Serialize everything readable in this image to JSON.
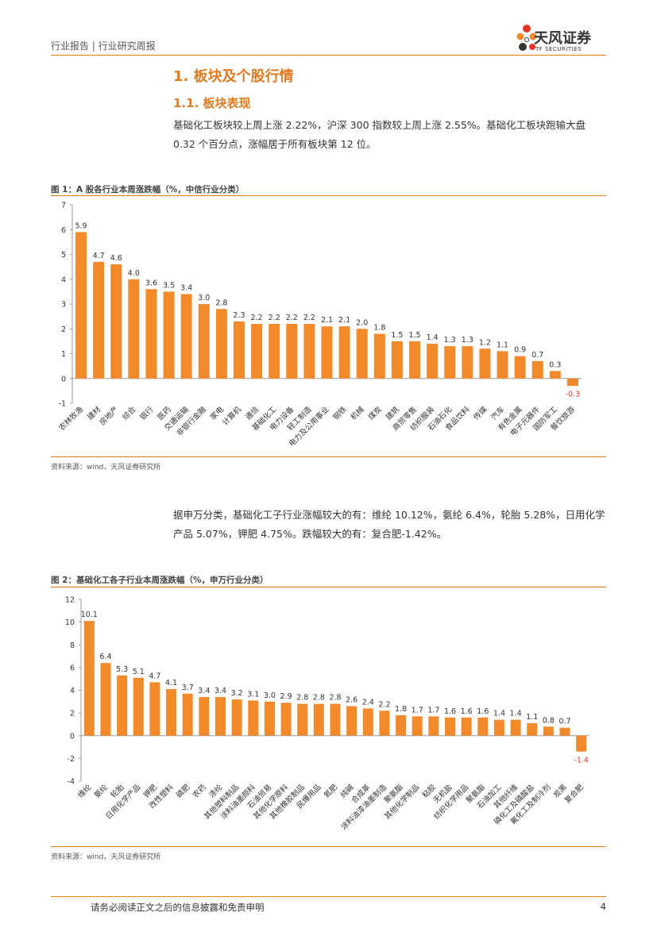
{
  "header": {
    "left": "行业报告 | 行业研究周报",
    "logo_cn": "天风证券",
    "logo_en": "TF SECURITIES"
  },
  "section": {
    "h1": "1. 板块及个股行情",
    "h2": "1.1. 板块表现",
    "para1": "基础化工板块较上周上涨 2.22%，沪深 300 指数较上周上涨 2.55%。基础化工板块跑输大盘 0.32 个百分点，涨幅居于所有板块第 12 位。",
    "para2": "据申万分类，基础化工子行业涨幅较大的有：维纶 10.12%，氨纶 6.4%，轮胎 5.28%，日用化学产品 5.07%，钾肥 4.75%。跌幅较大的有：复合肥-1.42%。"
  },
  "colors": {
    "bar": "#f28a2b",
    "negative_label": "#e5352b",
    "accent": "#e07b22"
  },
  "chart_data": [
    {
      "type": "bar",
      "title": "图 1：A 股各行业本周涨跌幅（%，中信行业分类）",
      "source": "资料来源：wind，天风证券研究所",
      "categories": [
        "农林牧渔",
        "建材",
        "房地产",
        "综合",
        "银行",
        "医药",
        "交通运输",
        "非银行金融",
        "家电",
        "计算机",
        "通信",
        "基础化工",
        "电力设备",
        "轻工制造",
        "电力及公用事业",
        "钢铁",
        "机械",
        "煤炭",
        "建筑",
        "商贸零售",
        "纺织服装",
        "石油石化",
        "食品饮料",
        "传媒",
        "汽车",
        "有色金属",
        "电子元器件",
        "国防军工",
        "餐饮旅游"
      ],
      "values": [
        5.9,
        4.7,
        4.6,
        4.0,
        3.6,
        3.5,
        3.4,
        3.0,
        2.8,
        2.3,
        2.2,
        2.2,
        2.2,
        2.2,
        2.1,
        2.1,
        2.0,
        1.8,
        1.5,
        1.5,
        1.4,
        1.3,
        1.3,
        1.2,
        1.1,
        0.9,
        0.7,
        0.3,
        -0.3
      ],
      "labels": [
        "5.9",
        "4.7",
        "4.6",
        "4.0",
        "3.6",
        "3.5",
        "3.4",
        "3.0",
        "2.8",
        "2.3",
        "2.2",
        "2.2",
        "2.2",
        "2.2",
        "2.1",
        "2.1",
        "2.0",
        "1.8",
        "1.5",
        "1.5",
        "1.4",
        "1.3",
        "1.3",
        "1.2",
        "1.1",
        "0.9",
        "0.7",
        "0.3",
        "-0.3"
      ],
      "ylim": [
        -1,
        7
      ],
      "yticks": [
        -1,
        0,
        1,
        2,
        3,
        4,
        5,
        6,
        7
      ],
      "xlabel": "",
      "ylabel": ""
    },
    {
      "type": "bar",
      "title": "图 2：基础化工各子行业本周涨跌幅（%，申万行业分类）",
      "source": "资料来源：wind，天风证券研究所",
      "categories": [
        "维纶",
        "氨纶",
        "轮胎",
        "日用化学产品",
        "钾肥",
        "改性塑料",
        "磷肥",
        "农药",
        "涤纶",
        "其他塑料制品",
        "涂料油墨颜料",
        "石油贸易",
        "其他化学原料",
        "其他橡胶制品",
        "民爆用品",
        "氮肥",
        "纯碱",
        "合成革",
        "涂料油漆油墨制造",
        "聚氨酯",
        "其他化学制品",
        "粘胶",
        "无机盐",
        "纺织化学用品",
        "聚氨酯",
        "石油加工",
        "其他纤维",
        "磷化工及磷酸盐",
        "氟化工及制冷剂",
        "炭黑",
        "复合肥"
      ],
      "values": [
        10.1,
        6.4,
        5.3,
        5.1,
        4.7,
        4.1,
        3.7,
        3.4,
        3.4,
        3.2,
        3.1,
        3.0,
        2.9,
        2.8,
        2.8,
        2.8,
        2.6,
        2.4,
        2.2,
        1.8,
        1.7,
        1.7,
        1.6,
        1.6,
        1.6,
        1.4,
        1.4,
        1.1,
        0.8,
        0.7,
        -1.4
      ],
      "labels": [
        "10.1",
        "6.4",
        "5.3",
        "5.1",
        "4.7",
        "4.1",
        "3.7",
        "3.4",
        "3.4",
        "3.2",
        "3.1",
        "3.0",
        "2.9",
        "2.8",
        "2.8",
        "2.8",
        "2.6",
        "2.4",
        "2.2",
        "1.8",
        "1.7",
        "1.7",
        "1.6",
        "1.6",
        "1.6",
        "1.4",
        "1.4",
        "1.1",
        "0.8",
        "0.7",
        "-1.4"
      ],
      "ylim": [
        -4,
        12
      ],
      "yticks": [
        -4,
        -2,
        0,
        2,
        4,
        6,
        8,
        10,
        12
      ],
      "xlabel": "",
      "ylabel": ""
    }
  ],
  "footer": {
    "disclaimer": "请务必阅读正文之后的信息披露和免责申明",
    "page": "4"
  }
}
